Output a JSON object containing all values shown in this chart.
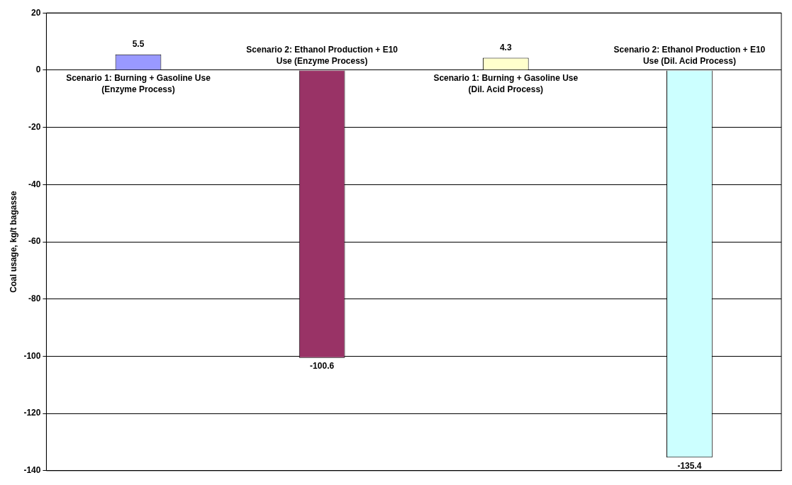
{
  "chart_data": {
    "type": "bar",
    "ylabel": "Coal usage, kg/t bagasse",
    "categories": [
      "Scenario 1: Burning + Gasoline Use (Enzyme Process)",
      "Scenario 2: Ethanol Production + E10 Use (Enzyme Process)",
      "Scenario 1: Burning + Gasoline Use (Dil. Acid Process)",
      "Scenario 2: Ethanol Production + E10 Use (Dil. Acid Process)"
    ],
    "values": [
      5.5,
      -100.6,
      4.3,
      -135.4
    ],
    "colors": [
      "#9999ff",
      "#993366",
      "#ffffcc",
      "#ccffff"
    ],
    "ylim": [
      -140,
      20
    ],
    "yticks": [
      -140,
      -120,
      -100,
      -80,
      -60,
      -40,
      -20,
      0,
      20
    ],
    "grid": "y",
    "legend": false,
    "tick_labels": "y",
    "data_labels": true
  }
}
